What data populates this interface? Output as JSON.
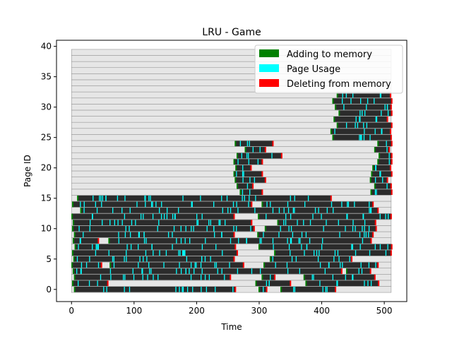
{
  "chart_data": {
    "type": "heatmap",
    "title": "LRU - Game",
    "xlabel": "Time",
    "ylabel": "Page ID",
    "xlim": [
      -24,
      536
    ],
    "ylim": [
      -2,
      41
    ],
    "grid": false,
    "legend_position": "top-right",
    "x_ticks": [
      0,
      100,
      200,
      300,
      400,
      500
    ],
    "y_ticks": [
      0,
      5,
      10,
      15,
      20,
      25,
      30,
      35,
      40
    ],
    "colors": {
      "empty_row": "#e6e6e6",
      "empty_grid": "#999999",
      "resident": "#2b2b2b",
      "page_usage": "#00ffff",
      "adding": "#008000",
      "deleting": "#ff0000"
    },
    "time_range": [
      0,
      511
    ],
    "page_ids": [
      0,
      39
    ],
    "legend": [
      {
        "label": "Adding to memory",
        "color": "#008000"
      },
      {
        "label": "Page Usage",
        "color": "#00ffff"
      },
      {
        "label": "Deleting from memory",
        "color": "#ff0000"
      }
    ],
    "residency": [
      {
        "page": 0,
        "intervals": [
          [
            5,
            262
          ],
          [
            300,
            312
          ],
          [
            335,
            422
          ]
        ]
      },
      {
        "page": 1,
        "intervals": [
          [
            2,
            58
          ],
          [
            295,
            350
          ],
          [
            375,
            491
          ]
        ]
      },
      {
        "page": 2,
        "intervals": [
          [
            5,
            254
          ],
          [
            305,
            325
          ],
          [
            372,
            485
          ]
        ]
      },
      {
        "page": 3,
        "intervals": [
          [
            3,
            432
          ],
          [
            440,
            478
          ]
        ]
      },
      {
        "page": 4,
        "intervals": [
          [
            1,
            48
          ],
          [
            62,
            275
          ],
          [
            308,
            490
          ]
        ]
      },
      {
        "page": 5,
        "intervals": [
          [
            4,
            260
          ],
          [
            318,
            448
          ]
        ]
      },
      {
        "page": 6,
        "intervals": [
          [
            2,
            265
          ],
          [
            325,
            511
          ]
        ]
      },
      {
        "page": 7,
        "intervals": [
          [
            6,
            262
          ],
          [
            300,
            512
          ]
        ]
      },
      {
        "page": 8,
        "intervals": [
          [
            3,
            43
          ],
          [
            60,
            479
          ]
        ]
      },
      {
        "page": 9,
        "intervals": [
          [
            5,
            260
          ],
          [
            298,
            482
          ]
        ]
      },
      {
        "page": 10,
        "intervals": [
          [
            2,
            292
          ],
          [
            310,
            487
          ]
        ]
      },
      {
        "page": 11,
        "intervals": [
          [
            3,
            288
          ],
          [
            330,
            486
          ]
        ]
      },
      {
        "page": 12,
        "intervals": [
          [
            1,
            260
          ],
          [
            299,
            511
          ]
        ]
      },
      {
        "page": 13,
        "intervals": [
          [
            15,
            490
          ]
        ]
      },
      {
        "page": 14,
        "intervals": [
          [
            2,
            288
          ],
          [
            305,
            482
          ]
        ]
      },
      {
        "page": 15,
        "intervals": [
          [
            10,
            415
          ]
        ]
      },
      {
        "page": 16,
        "intervals": [
          [
            270,
            305
          ],
          [
            479,
            512
          ]
        ]
      },
      {
        "page": 17,
        "intervals": [
          [
            265,
            290
          ],
          [
            485,
            511
          ]
        ]
      },
      {
        "page": 18,
        "intervals": [
          [
            262,
            310
          ],
          [
            478,
            505
          ]
        ]
      },
      {
        "page": 19,
        "intervals": [
          [
            260,
            305
          ],
          [
            480,
            512
          ]
        ]
      },
      {
        "page": 20,
        "intervals": [
          [
            263,
            287
          ],
          [
            482,
            510
          ]
        ]
      },
      {
        "page": 21,
        "intervals": [
          [
            260,
            305
          ],
          [
            490,
            512
          ]
        ]
      },
      {
        "page": 22,
        "intervals": [
          [
            265,
            336
          ],
          [
            492,
            512
          ]
        ]
      },
      {
        "page": 23,
        "intervals": [
          [
            278,
            310
          ],
          [
            485,
            508
          ]
        ]
      },
      {
        "page": 24,
        "intervals": [
          [
            262,
            322
          ],
          [
            490,
            512
          ]
        ]
      },
      {
        "page": 25,
        "intervals": [
          [
            418,
            511
          ]
        ]
      },
      {
        "page": 26,
        "intervals": [
          [
            415,
            510
          ]
        ]
      },
      {
        "page": 27,
        "intervals": [
          [
            425,
            512
          ]
        ]
      },
      {
        "page": 28,
        "intervals": [
          [
            420,
            505
          ]
        ]
      },
      {
        "page": 29,
        "intervals": [
          [
            428,
            512
          ]
        ]
      },
      {
        "page": 30,
        "intervals": [
          [
            422,
            511
          ]
        ]
      },
      {
        "page": 31,
        "intervals": [
          [
            418,
            512
          ]
        ]
      },
      {
        "page": 32,
        "intervals": [
          [
            425,
            510
          ]
        ]
      }
    ]
  }
}
